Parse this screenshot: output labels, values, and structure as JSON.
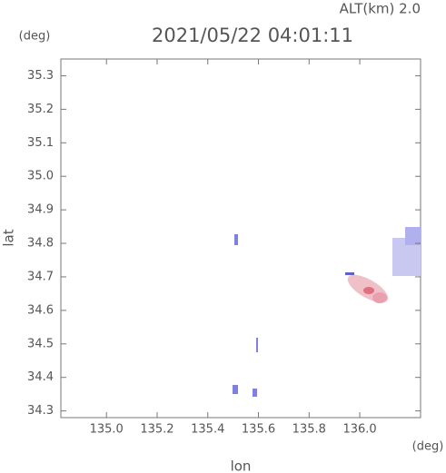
{
  "chart_data": {
    "type": "map",
    "title": "2021/05/22 04:01:11",
    "subtitle": "ALT(km) 2.0",
    "x_label": "lon",
    "y_label": "lat",
    "x_unit": "(deg)",
    "y_unit": "(deg)",
    "xlim": [
      134.82,
      136.24
    ],
    "ylim": [
      34.28,
      35.35
    ],
    "xticks": [
      {
        "value": 135,
        "label": "135.0"
      },
      135.2,
      135.4,
      135.6,
      135.8,
      {
        "value": 136,
        "label": "136.0"
      }
    ],
    "yticks": [
      34.3,
      34.4,
      34.5,
      34.6,
      34.7,
      34.8,
      34.9,
      {
        "value": 35,
        "label": "35.0"
      },
      35.1,
      35.2,
      35.3
    ]
  }
}
